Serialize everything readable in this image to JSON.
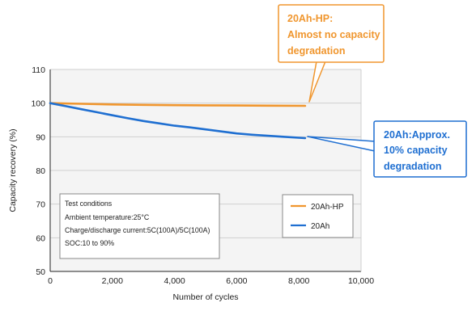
{
  "chart_data": {
    "type": "line",
    "xlabel": "Number of cycles",
    "ylabel": "Capacity recovery (%)",
    "xlim": [
      0,
      10000
    ],
    "ylim": [
      50,
      110
    ],
    "x_ticks": [
      0,
      2000,
      4000,
      6000,
      8000,
      10000
    ],
    "x_tick_labels": [
      "0",
      "2,000",
      "4,000",
      "6,000",
      "8,000",
      "10,000"
    ],
    "y_ticks": [
      50,
      60,
      70,
      80,
      90,
      100,
      110
    ],
    "y_tick_labels": [
      "50",
      "60",
      "70",
      "80",
      "90",
      "100",
      "110"
    ],
    "grid": "horizontal",
    "legend_position": "bottom-right",
    "series": [
      {
        "name": "20Ah-HP",
        "color": "#f0962e",
        "x": [
          0,
          1000,
          2000,
          3000,
          4000,
          5000,
          6000,
          7000,
          8200
        ],
        "y": [
          100,
          99.8,
          99.6,
          99.5,
          99.4,
          99.35,
          99.3,
          99.25,
          99.2
        ]
      },
      {
        "name": "20Ah",
        "color": "#1f6fd1",
        "x": [
          0,
          500,
          1000,
          1500,
          2000,
          2500,
          3000,
          3500,
          4000,
          4500,
          5000,
          5500,
          6000,
          6500,
          7000,
          7500,
          8200
        ],
        "y": [
          100,
          99.1,
          98.2,
          97.3,
          96.4,
          95.5,
          94.7,
          94.0,
          93.3,
          92.8,
          92.2,
          91.6,
          91.0,
          90.6,
          90.3,
          90.0,
          89.6
        ]
      }
    ],
    "conditions": {
      "title": "Test conditions",
      "lines": [
        "Ambient temperature:25°C",
        "Charge/discharge current:5C(100A)/5C(100A)",
        "SOC:10 to 90%"
      ]
    },
    "callouts": [
      {
        "series": "20Ah-HP",
        "color": "#f0962e",
        "lines": [
          "20Ah-HP:",
          "Almost no capacity",
          "degradation"
        ]
      },
      {
        "series": "20Ah",
        "color": "#1f6fd1",
        "lines": [
          "20Ah:Approx.",
          "10% capacity",
          "degradation"
        ]
      }
    ]
  }
}
